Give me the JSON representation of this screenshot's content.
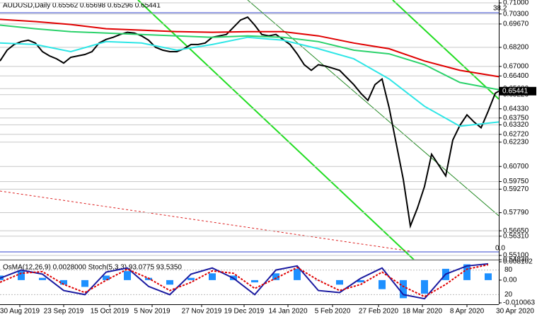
{
  "chart_data": [
    {
      "type": "line",
      "title": "AUDUSD,Daily 0.65562 0.65698 0.65296 0.65441",
      "xlim": [
        0,
        70.5
      ],
      "ylim": [
        0.5483,
        0.7118
      ],
      "yticks": [
        {
          "value": 0.71,
          "label": "0.71000"
        },
        {
          "value": 0.703,
          "label": "0.70300"
        },
        {
          "value": 0.6967,
          "label": "0.69670"
        },
        {
          "value": 0.682,
          "label": "0.68200"
        },
        {
          "value": 0.67,
          "label": "0.67000"
        },
        {
          "value": 0.664,
          "label": "0.66400"
        },
        {
          "value": 0.656,
          "label": "0.65600"
        },
        {
          "value": 0.6522,
          "label": "0.65220"
        },
        {
          "value": 0.6433,
          "label": "0.64330"
        },
        {
          "value": 0.6375,
          "label": "0.63750"
        },
        {
          "value": 0.6332,
          "label": "0.63320"
        },
        {
          "value": 0.6272,
          "label": "0.62720"
        },
        {
          "value": 0.6223,
          "label": "0.62230"
        },
        {
          "value": 0.607,
          "label": "0.60700"
        },
        {
          "value": 0.5975,
          "label": "0.59750"
        },
        {
          "value": 0.5927,
          "label": "0.59270"
        },
        {
          "value": 0.5779,
          "label": "0.57790"
        },
        {
          "value": 0.5665,
          "label": "0.56650"
        },
        {
          "value": 0.5631,
          "label": "0.56310"
        },
        {
          "value": 0.551,
          "label": "0.55100"
        },
        {
          "value": 0.5483,
          "label": "0.54830"
        }
      ],
      "xticks": [
        {
          "value": 2.8,
          "label": "30 Aug 2019"
        },
        {
          "value": 9,
          "label": "23 Sep 2019"
        },
        {
          "value": 15.5,
          "label": "15 Oct 2019"
        },
        {
          "value": 21.5,
          "label": "5 Nov 2019"
        },
        {
          "value": 28.5,
          "label": "27 Nov 2019"
        },
        {
          "value": 34.5,
          "label": "19 Dec 2019"
        },
        {
          "value": 40.7,
          "label": "14 Jan 2020"
        },
        {
          "value": 47,
          "label": "5 Feb 2020"
        },
        {
          "value": 53.5,
          "label": "27 Feb 2020"
        },
        {
          "value": 59.7,
          "label": "18 Mar 2020"
        },
        {
          "value": 66,
          "label": "8 Apr 2020"
        },
        {
          "value": 72.8,
          "label": "30 Apr 2020"
        }
      ],
      "grid": true,
      "last_price": 0.65441,
      "annotations": [
        "38.2",
        "0.0"
      ],
      "series": [
        {
          "color": "#000000",
          "x": [
            0,
            1,
            2,
            3,
            4,
            5,
            6,
            7,
            8,
            9,
            10,
            11,
            12,
            13,
            14,
            15,
            16,
            17,
            18,
            19,
            20,
            21,
            22,
            23,
            24,
            25,
            26,
            27,
            28,
            29,
            30,
            31,
            32,
            33,
            34,
            35,
            36,
            37,
            38,
            39,
            40,
            41,
            42,
            43,
            44,
            45,
            46,
            47,
            48,
            49,
            50,
            51,
            52,
            53,
            54,
            55,
            56,
            57,
            58,
            59,
            60,
            61,
            62,
            63,
            64,
            65,
            66,
            67,
            68,
            69,
            70,
            70.5
          ],
          "values": [
            0.6734,
            0.6802,
            0.6838,
            0.6856,
            0.6865,
            0.6847,
            0.6793,
            0.6766,
            0.6748,
            0.6721,
            0.6757,
            0.6766,
            0.6775,
            0.6793,
            0.6847,
            0.687,
            0.6883,
            0.6901,
            0.6915,
            0.691,
            0.6892,
            0.6865,
            0.682,
            0.6802,
            0.6793,
            0.6793,
            0.6811,
            0.6838,
            0.6838,
            0.6847,
            0.6883,
            0.6892,
            0.6901,
            0.6946,
            0.6992,
            0.701,
            0.696,
            0.6901,
            0.6892,
            0.6901,
            0.687,
            0.6838,
            0.6779,
            0.6711,
            0.6675,
            0.6711,
            0.6702,
            0.6689,
            0.6675,
            0.663,
            0.6585,
            0.6531,
            0.6486,
            0.6585,
            0.6621,
            0.644,
            0.6215,
            0.5989,
            0.5695,
            0.5808,
            0.5944,
            0.6147,
            0.6079,
            0.6011,
            0.6237,
            0.6328,
            0.6395,
            0.635,
            0.6314,
            0.6418,
            0.6531,
            0.65441
          ]
        },
        {
          "color": "#e00000",
          "x": [
            0,
            5,
            10,
            15,
            20,
            25,
            30,
            35,
            40,
            45,
            50,
            55,
            60,
            65,
            70.5
          ],
          "values": [
            0.6996,
            0.6982,
            0.6964,
            0.6937,
            0.6928,
            0.6919,
            0.6915,
            0.6919,
            0.6919,
            0.6892,
            0.6847,
            0.6811,
            0.6734,
            0.6675,
            0.6635
          ]
        },
        {
          "color": "#2bd26b",
          "x": [
            0,
            5,
            10,
            15,
            20,
            25,
            30,
            35,
            40,
            45,
            50,
            55,
            60,
            65,
            70.5
          ],
          "values": [
            0.696,
            0.6937,
            0.6919,
            0.691,
            0.6901,
            0.6892,
            0.6883,
            0.6892,
            0.6883,
            0.6856,
            0.6802,
            0.6779,
            0.6711,
            0.6599,
            0.6553
          ]
        },
        {
          "color": "#2ee6e6",
          "x": [
            0,
            5,
            10,
            15,
            20,
            25,
            30,
            35,
            40,
            45,
            50,
            55,
            60,
            65,
            70.5
          ],
          "values": [
            0.6847,
            0.6838,
            0.6793,
            0.6856,
            0.6847,
            0.6802,
            0.6838,
            0.6883,
            0.6865,
            0.6811,
            0.6748,
            0.6621,
            0.6449,
            0.6323,
            0.635
          ]
        }
      ]
    },
    {
      "type": "bar",
      "title": "OsMA(12,26,9) 0.0028000  Stoch(5,3,3) 93.0775 93.5350",
      "xlim": [
        0,
        70.5
      ],
      "ylim": [
        -0.010063,
        0.008102
      ],
      "yticks": [
        {
          "value": 0.008102,
          "label": "0.008102"
        },
        {
          "value": 0,
          "label": "0.00"
        },
        {
          "value": -0.010063,
          "label": "-0.010063"
        }
      ],
      "y2lim": [
        0,
        100
      ],
      "y2ticks": [
        80,
        20
      ],
      "x": [
        0,
        3,
        6,
        9,
        12,
        15,
        18,
        21,
        24,
        27,
        30,
        33,
        36,
        39,
        42,
        45,
        48,
        51,
        54,
        57,
        60,
        63,
        66,
        69
      ],
      "values": [
        0.002,
        0.004,
        0.001,
        -0.002,
        -0.003,
        0.002,
        0.004,
        0.001,
        -0.002,
        0.001,
        0.003,
        0.002,
        -0.001,
        0.003,
        0.005,
        0,
        -0.002,
        -0.001,
        -0.004,
        -0.008,
        -0.006,
        0.005,
        0.007,
        0.003
      ],
      "color": "#1e90ff",
      "series": [
        {
          "color": "#1a1aa0",
          "axis": "y2",
          "values": [
            60,
            80,
            70,
            30,
            20,
            75,
            85,
            40,
            20,
            70,
            85,
            60,
            20,
            80,
            90,
            30,
            25,
            60,
            85,
            20,
            10,
            70,
            90,
            95
          ]
        },
        {
          "color": "#e00000",
          "axis": "y2",
          "values": [
            50,
            72,
            76,
            45,
            25,
            55,
            82,
            60,
            30,
            50,
            78,
            72,
            35,
            60,
            86,
            55,
            30,
            45,
            75,
            40,
            15,
            45,
            82,
            93
          ]
        }
      ]
    }
  ]
}
